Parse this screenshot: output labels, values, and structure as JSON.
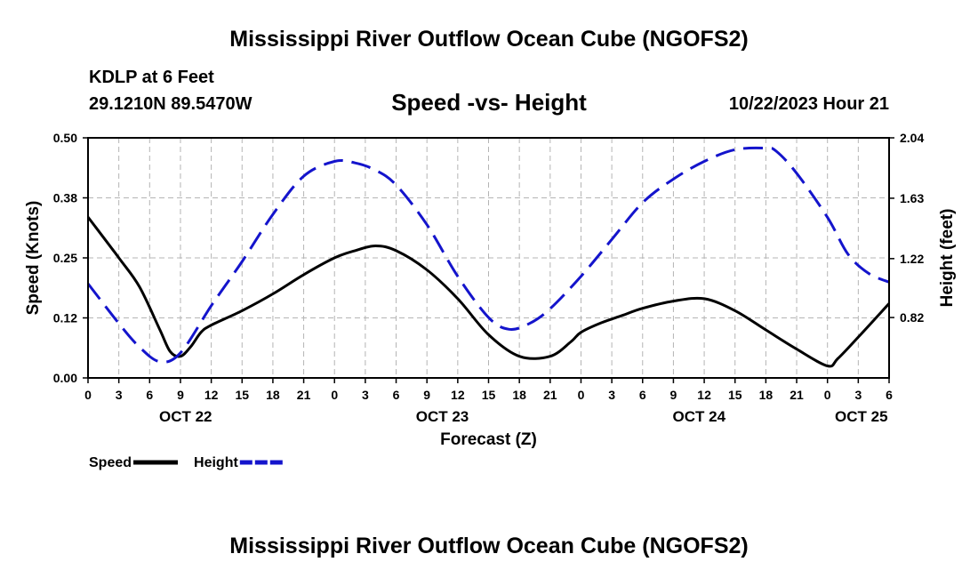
{
  "page": {
    "title": "Mississippi River Outflow Ocean Cube (NGOFS2)",
    "footer_title": "Mississippi River Outflow Ocean Cube (NGOFS2)",
    "station": "KDLP at 6 Feet",
    "coords": "29.1210N  89.5470W",
    "subtitle": "Speed -vs- Height",
    "forecast_time": "10/22/2023 Hour 21"
  },
  "chart_data": {
    "type": "line",
    "title": "Speed -vs- Height",
    "xlabel": "Forecast (Z)",
    "ylabel_left": "Speed (Knots)",
    "ylabel_right": "Height (feet)",
    "x_range_hours": [
      0,
      78
    ],
    "x_ticks": [
      0,
      3,
      6,
      9,
      12,
      15,
      18,
      21,
      24,
      27,
      30,
      33,
      36,
      39,
      42,
      45,
      48,
      51,
      54,
      57,
      60,
      63,
      66,
      69,
      72,
      75,
      78
    ],
    "x_tick_labels": [
      "0",
      "3",
      "6",
      "9",
      "12",
      "15",
      "18",
      "21",
      "0",
      "3",
      "6",
      "9",
      "12",
      "15",
      "18",
      "21",
      "0",
      "3",
      "6",
      "9",
      "12",
      "15",
      "18",
      "21",
      "0",
      "3",
      "6"
    ],
    "day_labels": [
      {
        "label": "OCT 22",
        "hour": 9.5
      },
      {
        "label": "OCT 23",
        "hour": 34.5
      },
      {
        "label": "OCT 24",
        "hour": 59.5
      },
      {
        "label": "OCT 25",
        "hour": 75.3
      }
    ],
    "y_left_range": [
      0,
      0.5
    ],
    "y_left_ticks": [
      0,
      0.125,
      0.25,
      0.375,
      0.5
    ],
    "y_left_tick_labels": [
      "0.00",
      "0.12",
      "0.25",
      "0.38",
      "0.50"
    ],
    "y_right_range": [
      0.41,
      2.04
    ],
    "y_right_ticks": [
      0.82,
      1.22,
      1.63,
      2.04
    ],
    "y_right_tick_labels": [
      "0.82",
      "1.22",
      "1.63",
      "2.04"
    ],
    "grid": true,
    "legend_position": "bottom-left",
    "series": [
      {
        "name": "Speed",
        "axis": "left",
        "color": "#000000",
        "style": "solid",
        "x": [
          0,
          3,
          5,
          7,
          8,
          9,
          10,
          11,
          12,
          15,
          18,
          21,
          24,
          26,
          28,
          30,
          33,
          36,
          39,
          42,
          45,
          47,
          48,
          50,
          52,
          54,
          57,
          60,
          63,
          66,
          69,
          72,
          73,
          75,
          78
        ],
        "values": [
          0.335,
          0.25,
          0.19,
          0.1,
          0.055,
          0.045,
          0.065,
          0.095,
          0.11,
          0.14,
          0.175,
          0.215,
          0.25,
          0.265,
          0.275,
          0.265,
          0.225,
          0.165,
          0.09,
          0.045,
          0.045,
          0.075,
          0.095,
          0.115,
          0.13,
          0.145,
          0.16,
          0.165,
          0.14,
          0.1,
          0.06,
          0.025,
          0.04,
          0.085,
          0.155
        ]
      },
      {
        "name": "Height",
        "axis": "right",
        "color": "#1414cc",
        "style": "dashed",
        "x": [
          0,
          3,
          5,
          7,
          9,
          12,
          15,
          18,
          21,
          24,
          26,
          28,
          30,
          33,
          36,
          39,
          41,
          43,
          45,
          48,
          51,
          54,
          57,
          60,
          63,
          66,
          67,
          69,
          72,
          74,
          76,
          78
        ],
        "values": [
          1.05,
          0.78,
          0.62,
          0.52,
          0.58,
          0.9,
          1.2,
          1.52,
          1.78,
          1.88,
          1.87,
          1.82,
          1.72,
          1.45,
          1.1,
          0.82,
          0.74,
          0.78,
          0.88,
          1.1,
          1.35,
          1.6,
          1.76,
          1.88,
          1.96,
          1.97,
          1.95,
          1.8,
          1.5,
          1.25,
          1.12,
          1.06
        ]
      }
    ]
  }
}
